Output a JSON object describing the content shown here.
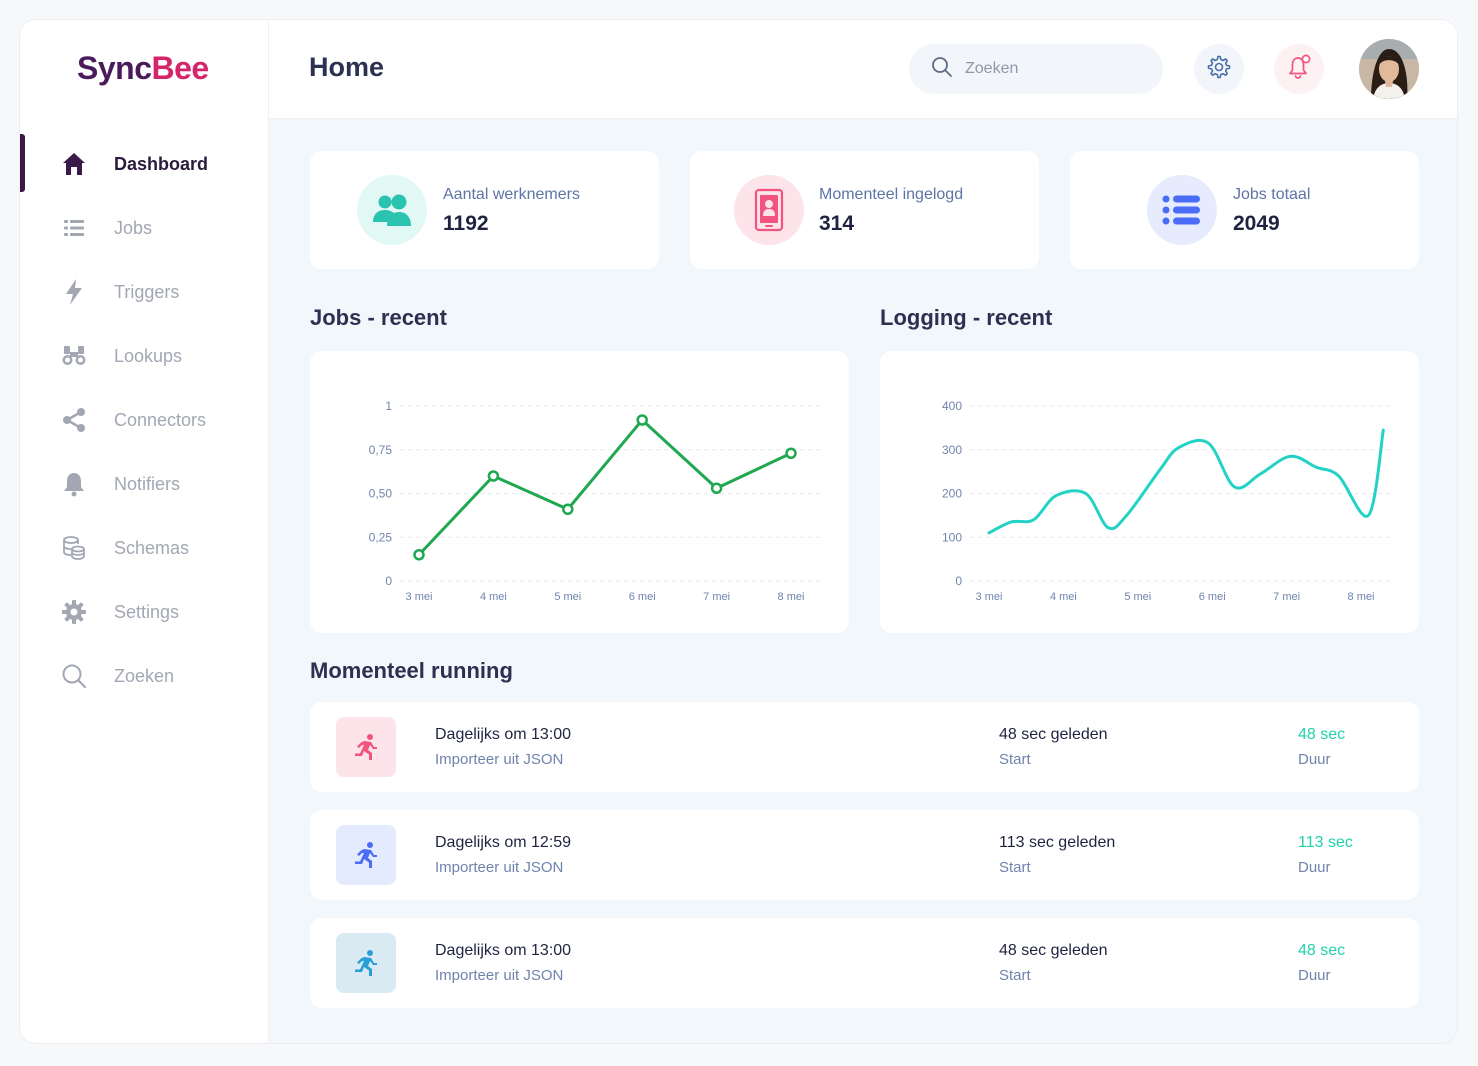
{
  "app": {
    "logo_left": "Sync",
    "logo_right": "Bee"
  },
  "sidebar": {
    "items": [
      {
        "label": "Dashboard",
        "icon": "home-icon",
        "active": true
      },
      {
        "label": "Jobs",
        "icon": "list-icon"
      },
      {
        "label": "Triggers",
        "icon": "bolt-icon"
      },
      {
        "label": "Lookups",
        "icon": "binoculars-icon"
      },
      {
        "label": "Connectors",
        "icon": "share-icon"
      },
      {
        "label": "Notifiers",
        "icon": "bell-icon"
      },
      {
        "label": "Schemas",
        "icon": "database-icon"
      },
      {
        "label": "Settings",
        "icon": "gear-icon"
      },
      {
        "label": "Zoeken",
        "icon": "search-icon"
      }
    ]
  },
  "header": {
    "title": "Home",
    "search_placeholder": "Zoeken"
  },
  "stats": [
    {
      "label": "Aantal werknemers",
      "value": "1192",
      "icon": "users-icon",
      "color": "#29c3b0"
    },
    {
      "label": "Momenteel ingelogd",
      "value": "314",
      "icon": "phone-user-icon",
      "color": "#f0547f"
    },
    {
      "label": "Jobs totaal",
      "value": "2049",
      "icon": "list-icon",
      "color": "#4a6cf7"
    }
  ],
  "sections": {
    "jobs_recent": "Jobs - recent",
    "logging_recent": "Logging - recent",
    "running": "Momenteel running"
  },
  "chart_data": [
    {
      "type": "line",
      "title": "Jobs - recent",
      "categories": [
        "3 mei",
        "4 mei",
        "5 mei",
        "6 mei",
        "7 mei",
        "8 mei"
      ],
      "y_ticks": [
        "0",
        "0,25",
        "0,50",
        "0,75",
        "1"
      ],
      "ylim": [
        0,
        1
      ],
      "x": [
        0,
        1,
        2,
        3,
        4,
        5
      ],
      "values": [
        0.15,
        0.6,
        0.41,
        0.92,
        0.53,
        0.73
      ],
      "color": "#1fa84f",
      "markers": true
    },
    {
      "type": "line",
      "title": "Logging - recent",
      "categories": [
        "3 mei",
        "4 mei",
        "5 mei",
        "6 mei",
        "7 mei",
        "8 mei"
      ],
      "y_ticks": [
        "0",
        "100",
        "200",
        "300",
        "400"
      ],
      "ylim": [
        0,
        400
      ],
      "x": [
        0,
        0.3,
        0.6,
        0.9,
        1.3,
        1.6,
        1.85,
        2.3,
        2.55,
        2.95,
        3.3,
        3.65,
        4.05,
        4.4,
        4.7,
        5.1,
        5.3
      ],
      "values": [
        110,
        135,
        140,
        195,
        200,
        122,
        150,
        255,
        305,
        315,
        215,
        245,
        285,
        260,
        240,
        150,
        345
      ],
      "color": "#22d3c5",
      "smooth": true
    }
  ],
  "running": [
    {
      "title": "Dagelijks om 13:00",
      "subtitle": "Importeer uit JSON",
      "time": "48 sec geleden",
      "time_label": "Start",
      "duration": "48 sec",
      "duration_label": "Duur",
      "icon": "runner-icon",
      "color": "#f0547f",
      "bg": "#fde3ea"
    },
    {
      "title": "Dagelijks om 12:59",
      "subtitle": "Importeer uit JSON",
      "time": "113 sec geleden",
      "time_label": "Start",
      "duration": "113 sec",
      "duration_label": "Duur",
      "icon": "runner-icon",
      "color": "#4a6cf7",
      "bg": "#e5ebff"
    },
    {
      "title": "Dagelijks om 13:00",
      "subtitle": "Importeer uit JSON",
      "time": "48 sec geleden",
      "time_label": "Start",
      "duration": "48 sec",
      "duration_label": "Duur",
      "icon": "runner-icon",
      "color": "#2a9fd8",
      "bg": "#d9eaf3"
    }
  ]
}
